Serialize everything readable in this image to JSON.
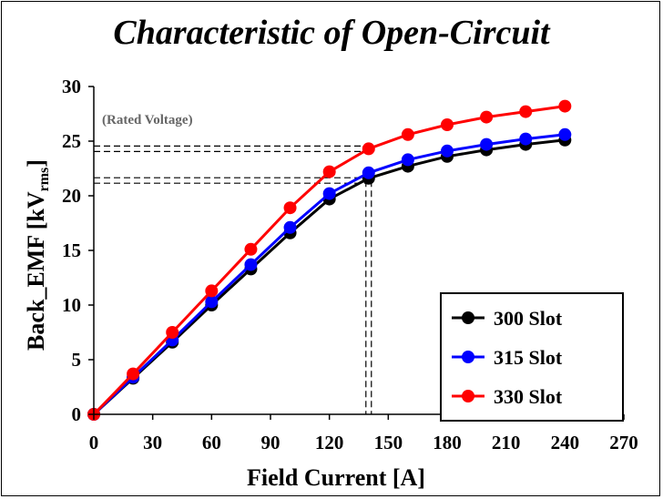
{
  "chart_data": {
    "type": "line",
    "title": "Characteristic of Open-Circuit",
    "xlabel": "Field Current [A]",
    "ylabel_main": "Back_EMF [kV",
    "ylabel_sub": "rms",
    "ylabel_end": "]",
    "xlim": [
      0,
      270
    ],
    "ylim": [
      0,
      30
    ],
    "xticks": [
      "0",
      "30",
      "60",
      "90",
      "120",
      "150",
      "180",
      "210",
      "240",
      "270"
    ],
    "yticks": [
      "0",
      "5",
      "10",
      "15",
      "20",
      "25",
      "30"
    ],
    "x": [
      0,
      20,
      40,
      60,
      80,
      100,
      120,
      140,
      160,
      180,
      200,
      220,
      240
    ],
    "series": [
      {
        "name": "300 Slot",
        "color": "#000000",
        "values": [
          0,
          3.3,
          6.6,
          10.0,
          13.3,
          16.6,
          19.7,
          21.6,
          22.7,
          23.6,
          24.2,
          24.7,
          25.1
        ]
      },
      {
        "name": "315 Slot",
        "color": "#0000ff",
        "values": [
          0,
          3.4,
          6.8,
          10.3,
          13.7,
          17.1,
          20.2,
          22.1,
          23.3,
          24.1,
          24.7,
          25.2,
          25.6
        ]
      },
      {
        "name": "330 Slot",
        "color": "#ff0000",
        "values": [
          0,
          3.7,
          7.5,
          11.3,
          15.1,
          18.9,
          22.2,
          24.3,
          25.6,
          26.5,
          27.2,
          27.7,
          28.2
        ]
      }
    ],
    "annotation": "(Rated Voltage)",
    "reference_lines": {
      "x": 140,
      "y": [
        24.3,
        21.4
      ]
    },
    "legend_position": "bottom-right",
    "grid": false
  }
}
